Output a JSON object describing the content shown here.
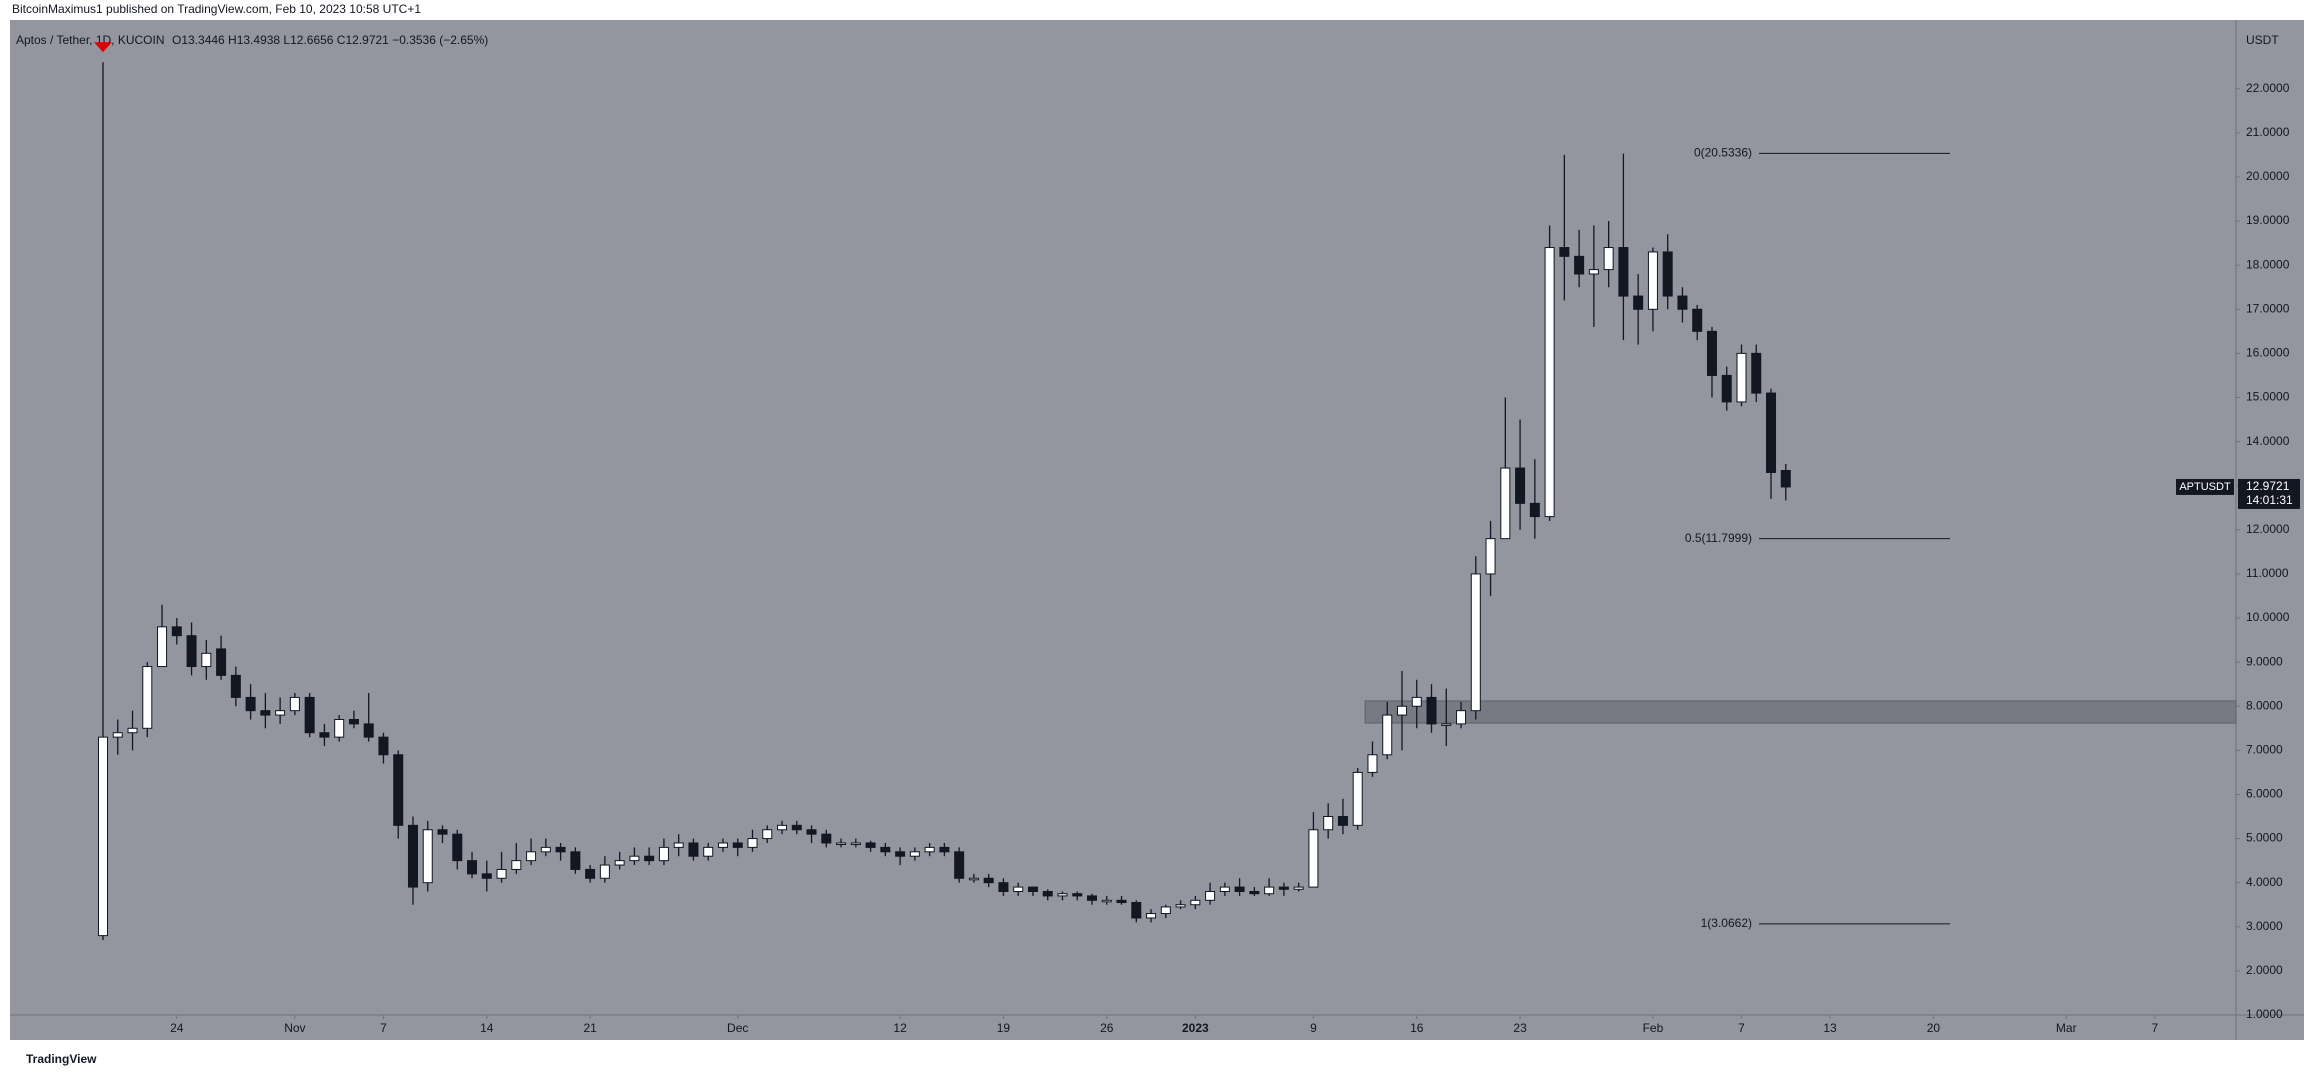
{
  "chart_data": {
    "type": "candlestick",
    "header": "BitcoinMaximus1 published on TradingView.com, Feb 10, 2023 10:58 UTC+1",
    "symbol": "Aptos / Tether, 1D, KUCOIN",
    "ohlc_text": "O13.3446 H13.4938 L12.6656 C12.9721 −0.3536 (−2.65%)",
    "currency": "USDT",
    "footer": "TradingView",
    "up_color": "#ffffff",
    "down_color": "#131722",
    "series": [
      {
        "name": "APTUSDT",
        "open": [
          2.8,
          7.3,
          7.4,
          7.5,
          8.9,
          9.8,
          9.6,
          8.9,
          9.3,
          8.7,
          8.2,
          7.9,
          7.8,
          7.9,
          8.2,
          7.4,
          7.3,
          7.7,
          7.6,
          7.3,
          6.9,
          5.3,
          4.0,
          5.2,
          5.1,
          4.5,
          4.2,
          4.1,
          4.3,
          4.5,
          4.7,
          4.8,
          4.7,
          4.3,
          4.1,
          4.4,
          4.5,
          4.6,
          4.5,
          4.8,
          4.9,
          4.6,
          4.8,
          4.9,
          4.8,
          5.0,
          5.2,
          5.3,
          5.2,
          5.1,
          4.9,
          4.9,
          4.9,
          4.8,
          4.7,
          4.6,
          4.7,
          4.8,
          4.7,
          4.1,
          4.1,
          4.0,
          3.8,
          3.9,
          3.8,
          3.7,
          3.75,
          3.7,
          3.6,
          3.6,
          3.55,
          3.2,
          3.3,
          3.45,
          3.5,
          3.6,
          3.8,
          3.9,
          3.8,
          3.75,
          3.9,
          3.85,
          3.9,
          5.2,
          5.5,
          5.3,
          6.5,
          6.9,
          7.8,
          8.0,
          8.2,
          7.6,
          7.6,
          7.9,
          11.0,
          11.8,
          13.4,
          12.6,
          12.3,
          18.4,
          18.2,
          17.8,
          17.9,
          18.4,
          17.3,
          17.0,
          18.3,
          17.3,
          17.0,
          16.5,
          15.5,
          14.9,
          16.0,
          15.1,
          13.3446
        ],
        "high": [
          22.6,
          7.7,
          7.9,
          9.0,
          10.3,
          10.0,
          9.9,
          9.5,
          9.6,
          8.9,
          8.5,
          8.3,
          8.2,
          8.3,
          8.3,
          7.6,
          7.8,
          7.9,
          8.3,
          7.4,
          7.0,
          5.5,
          5.4,
          5.3,
          5.2,
          4.7,
          4.5,
          4.7,
          4.9,
          5.0,
          5.0,
          4.9,
          4.8,
          4.4,
          4.6,
          4.7,
          4.8,
          4.8,
          5.0,
          5.1,
          5.0,
          4.9,
          5.0,
          5.0,
          5.2,
          5.3,
          5.4,
          5.4,
          5.3,
          5.2,
          5.0,
          5.0,
          4.95,
          4.9,
          4.8,
          4.8,
          4.9,
          4.9,
          4.8,
          4.2,
          4.2,
          4.1,
          4.0,
          3.9,
          3.85,
          3.8,
          3.8,
          3.75,
          3.7,
          3.7,
          3.6,
          3.4,
          3.5,
          3.6,
          3.7,
          4.0,
          4.0,
          4.1,
          3.9,
          4.1,
          4.0,
          4.0,
          5.6,
          5.8,
          5.9,
          6.6,
          7.2,
          8.1,
          8.8,
          8.6,
          8.5,
          8.4,
          8.1,
          11.4,
          12.2,
          15.0,
          14.5,
          13.6,
          18.9,
          20.5,
          18.8,
          18.9,
          19.0,
          20.53,
          17.8,
          18.4,
          18.7,
          17.5,
          17.1,
          16.6,
          15.7,
          16.2,
          16.2,
          15.2,
          13.4938
        ],
        "low": [
          2.7,
          6.9,
          7.0,
          7.3,
          8.9,
          9.4,
          8.7,
          8.6,
          8.6,
          8.0,
          7.7,
          7.5,
          7.6,
          7.8,
          7.3,
          7.1,
          7.2,
          7.5,
          7.2,
          6.7,
          5.0,
          3.5,
          3.8,
          4.9,
          4.3,
          4.1,
          3.8,
          4.0,
          4.2,
          4.4,
          4.6,
          4.5,
          4.2,
          4.0,
          4.0,
          4.3,
          4.4,
          4.4,
          4.4,
          4.6,
          4.5,
          4.5,
          4.7,
          4.6,
          4.7,
          4.9,
          5.1,
          5.1,
          4.9,
          4.8,
          4.8,
          4.8,
          4.7,
          4.6,
          4.4,
          4.5,
          4.6,
          4.6,
          4.0,
          4.0,
          3.9,
          3.7,
          3.7,
          3.7,
          3.6,
          3.6,
          3.6,
          3.5,
          3.5,
          3.5,
          3.1,
          3.1,
          3.2,
          3.4,
          3.4,
          3.5,
          3.7,
          3.7,
          3.7,
          3.7,
          3.7,
          3.8,
          3.9,
          5.0,
          5.1,
          5.2,
          6.4,
          6.8,
          7.0,
          7.5,
          7.4,
          7.1,
          7.5,
          7.7,
          10.5,
          11.8,
          12.0,
          11.8,
          12.2,
          17.2,
          17.5,
          16.6,
          17.5,
          16.3,
          16.2,
          16.5,
          17.0,
          16.7,
          16.3,
          15.0,
          14.7,
          14.8,
          14.9,
          12.7,
          12.6656
        ],
        "close": [
          7.3,
          7.4,
          7.5,
          8.9,
          9.8,
          9.6,
          8.9,
          9.2,
          8.7,
          8.2,
          7.9,
          7.8,
          7.9,
          8.2,
          7.4,
          7.3,
          7.7,
          7.6,
          7.3,
          6.9,
          5.3,
          3.9,
          5.2,
          5.1,
          4.5,
          4.2,
          4.1,
          4.3,
          4.5,
          4.7,
          4.8,
          4.7,
          4.3,
          4.1,
          4.4,
          4.5,
          4.6,
          4.5,
          4.8,
          4.9,
          4.6,
          4.8,
          4.9,
          4.8,
          5.0,
          5.2,
          5.3,
          5.2,
          5.1,
          4.9,
          4.9,
          4.9,
          4.8,
          4.7,
          4.6,
          4.7,
          4.8,
          4.7,
          4.1,
          4.1,
          4.0,
          3.8,
          3.9,
          3.8,
          3.7,
          3.75,
          3.7,
          3.6,
          3.6,
          3.55,
          3.2,
          3.3,
          3.45,
          3.5,
          3.6,
          3.8,
          3.9,
          3.8,
          3.75,
          3.9,
          3.85,
          3.9,
          5.2,
          5.5,
          5.3,
          6.5,
          6.9,
          7.8,
          8.0,
          8.2,
          7.6,
          7.6,
          7.9,
          11.0,
          11.8,
          13.4,
          12.6,
          12.3,
          18.4,
          18.2,
          17.8,
          17.9,
          18.4,
          17.3,
          17.0,
          18.3,
          17.3,
          17.0,
          16.5,
          15.5,
          14.9,
          16.0,
          15.1,
          13.3,
          12.9721
        ]
      }
    ],
    "last_price_label": "12.9721",
    "countdown": "14:01:31",
    "fib_levels": [
      {
        "value": 20.5336,
        "label": "0(20.5336)"
      },
      {
        "value": 11.7999,
        "label": "0.5(11.7999)"
      },
      {
        "value": 3.0662,
        "label": "1(3.0662)"
      }
    ],
    "zone": {
      "from": 86,
      "low": 7.62,
      "high": 8.12
    },
    "xlim": [
      -6.3,
      144.5
    ],
    "xticks": [
      {
        "value": 5,
        "label": "24"
      },
      {
        "value": 13,
        "label": "Nov"
      },
      {
        "value": 19,
        "label": "7"
      },
      {
        "value": 26,
        "label": "14"
      },
      {
        "value": 33,
        "label": "21"
      },
      {
        "value": 43,
        "label": "Dec"
      },
      {
        "value": 54,
        "label": "12"
      },
      {
        "value": 61,
        "label": "19"
      },
      {
        "value": 68,
        "label": "26"
      },
      {
        "value": 74,
        "label": "2023"
      },
      {
        "value": 82,
        "label": "9"
      },
      {
        "value": 89,
        "label": "16"
      },
      {
        "value": 96,
        "label": "23"
      },
      {
        "value": 105,
        "label": "Feb"
      },
      {
        "value": 111,
        "label": "7"
      },
      {
        "value": 117,
        "label": "13"
      },
      {
        "value": 124,
        "label": "20"
      },
      {
        "value": 133,
        "label": "Mar"
      },
      {
        "value": 139,
        "label": "7"
      }
    ],
    "ylim": [
      1.0,
      23.4
    ],
    "yticks": [
      {
        "value": 1,
        "label": "1.0000"
      },
      {
        "value": 2,
        "label": "2.0000"
      },
      {
        "value": 3,
        "label": "3.0000"
      },
      {
        "value": 4,
        "label": "4.0000"
      },
      {
        "value": 5,
        "label": "5.0000"
      },
      {
        "value": 6,
        "label": "6.0000"
      },
      {
        "value": 7,
        "label": "7.0000"
      },
      {
        "value": 8,
        "label": "8.0000"
      },
      {
        "value": 9,
        "label": "9.0000"
      },
      {
        "value": 10,
        "label": "10.0000"
      },
      {
        "value": 11,
        "label": "11.0000"
      },
      {
        "value": 12,
        "label": "12.0000"
      },
      {
        "value": 13,
        "label": "13.0000"
      },
      {
        "value": 14,
        "label": "14.0000"
      },
      {
        "value": 15,
        "label": "15.0000"
      },
      {
        "value": 16,
        "label": "16.0000"
      },
      {
        "value": 17,
        "label": "17.0000"
      },
      {
        "value": 18,
        "label": "18.0000"
      },
      {
        "value": 19,
        "label": "19.0000"
      },
      {
        "value": 20,
        "label": "20.0000"
      },
      {
        "value": 21,
        "label": "21.0000"
      },
      {
        "value": 22,
        "label": "22.0000"
      }
    ]
  }
}
